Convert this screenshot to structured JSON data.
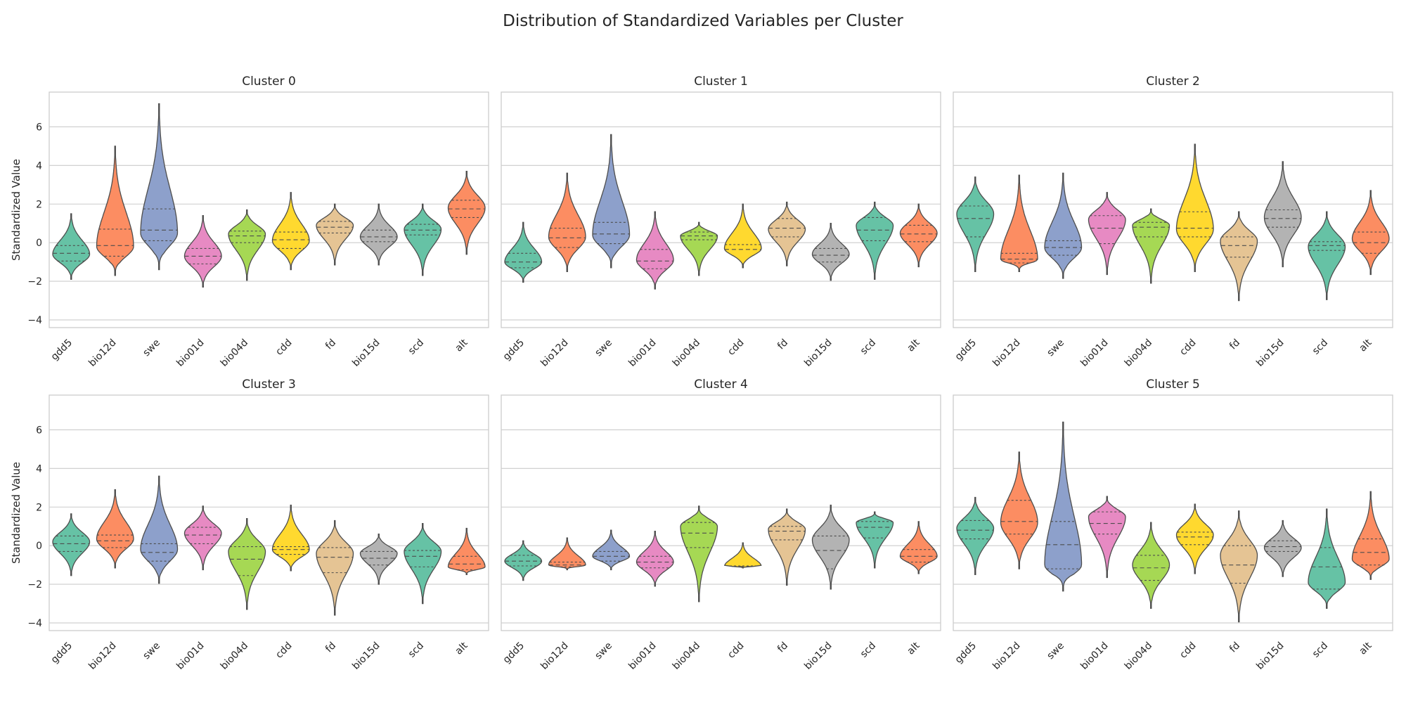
{
  "title": "Distribution of Standardized Variables per Cluster",
  "colors": {
    "gdd5": "#66c2a5",
    "bio12d": "#fc8d62",
    "swe": "#8da0cb",
    "bio01d": "#e78ac3",
    "bio04d": "#a6d854",
    "cdd": "#ffd92f",
    "fd": "#e5c494",
    "bio15d": "#b3b3b3",
    "scd": "#66c2a5",
    "alt": "#fc8d62"
  },
  "chart_data": [
    {
      "type": "violin",
      "title": "Cluster 0",
      "ylabel": "Standardized Value",
      "categories": [
        "gdd5",
        "bio12d",
        "swe",
        "bio01d",
        "bio04d",
        "cdd",
        "fd",
        "bio15d",
        "scd",
        "alt"
      ],
      "ylim": [
        -4.4,
        7.8
      ],
      "yticks": [
        -4,
        -2,
        0,
        2,
        4,
        6
      ],
      "grid": "horizontal",
      "violins": [
        {
          "min": -1.9,
          "q1": -0.95,
          "median": -0.55,
          "q3": -0.15,
          "max": 1.5,
          "peak": -0.6,
          "width": 0.85
        },
        {
          "min": -1.7,
          "q1": -0.7,
          "median": -0.15,
          "q3": 0.7,
          "max": 5.0,
          "peak": -0.2,
          "width": 0.85
        },
        {
          "min": -1.4,
          "q1": 0.1,
          "median": 0.65,
          "q3": 1.75,
          "max": 7.2,
          "peak": 0.5,
          "width": 0.85
        },
        {
          "min": -2.3,
          "q1": -1.1,
          "median": -0.7,
          "q3": -0.3,
          "max": 1.4,
          "peak": -0.7,
          "width": 0.85
        },
        {
          "min": -1.95,
          "q1": 0.0,
          "median": 0.35,
          "q3": 0.6,
          "max": 1.7,
          "peak": 0.45,
          "width": 0.85
        },
        {
          "min": -1.4,
          "q1": -0.3,
          "median": 0.15,
          "q3": 0.55,
          "max": 2.6,
          "peak": 0.1,
          "width": 0.85
        },
        {
          "min": -1.15,
          "q1": 0.5,
          "median": 0.8,
          "q3": 1.1,
          "max": 2.0,
          "peak": 0.9,
          "width": 0.85
        },
        {
          "min": -1.15,
          "q1": 0.05,
          "median": 0.3,
          "q3": 0.65,
          "max": 2.0,
          "peak": 0.3,
          "width": 0.85
        },
        {
          "min": -1.7,
          "q1": 0.4,
          "median": 0.65,
          "q3": 0.95,
          "max": 2.0,
          "peak": 0.7,
          "width": 0.85
        },
        {
          "min": -0.6,
          "q1": 1.3,
          "median": 1.75,
          "q3": 2.2,
          "max": 3.7,
          "peak": 1.8,
          "width": 0.85
        }
      ]
    },
    {
      "type": "violin",
      "title": "Cluster 1",
      "ylabel": "",
      "categories": [
        "gdd5",
        "bio12d",
        "swe",
        "bio01d",
        "bio04d",
        "cdd",
        "fd",
        "bio15d",
        "scd",
        "alt"
      ],
      "ylim": [
        -4.4,
        7.8
      ],
      "yticks": [
        -4,
        -2,
        0,
        2,
        4,
        6
      ],
      "grid": "horizontal",
      "violins": [
        {
          "min": -2.05,
          "q1": -1.3,
          "median": -1.0,
          "q3": -0.55,
          "max": 1.05,
          "peak": -1.0,
          "width": 0.85
        },
        {
          "min": -1.5,
          "q1": -0.25,
          "median": 0.25,
          "q3": 0.75,
          "max": 3.6,
          "peak": 0.3,
          "width": 0.85
        },
        {
          "min": -1.3,
          "q1": -0.05,
          "median": 0.45,
          "q3": 1.05,
          "max": 5.6,
          "peak": 0.4,
          "width": 0.85
        },
        {
          "min": -2.4,
          "q1": -1.35,
          "median": -0.95,
          "q3": -0.35,
          "max": 1.6,
          "peak": -0.9,
          "width": 0.85
        },
        {
          "min": -1.7,
          "q1": 0.15,
          "median": 0.35,
          "q3": 0.55,
          "max": 1.05,
          "peak": 0.35,
          "width": 0.85
        },
        {
          "min": -1.3,
          "q1": -1.1,
          "median": -0.35,
          "q3": -0.1,
          "max": 2.0,
          "peak": -0.3,
          "width": 0.85
        },
        {
          "min": -1.2,
          "q1": 0.3,
          "median": 0.75,
          "q3": 1.25,
          "max": 2.1,
          "peak": 0.7,
          "width": 0.85
        },
        {
          "min": -1.95,
          "q1": -1.0,
          "median": -0.65,
          "q3": -0.3,
          "max": 1.0,
          "peak": -0.6,
          "width": 0.85
        },
        {
          "min": -1.9,
          "q1": 0.1,
          "median": 0.65,
          "q3": 1.3,
          "max": 2.1,
          "peak": 0.9,
          "width": 0.85
        },
        {
          "min": -1.25,
          "q1": 0.05,
          "median": 0.45,
          "q3": 0.9,
          "max": 2.0,
          "peak": 0.5,
          "width": 0.85
        }
      ]
    },
    {
      "type": "violin",
      "title": "Cluster 2",
      "ylabel": "",
      "categories": [
        "gdd5",
        "bio12d",
        "swe",
        "bio01d",
        "bio04d",
        "cdd",
        "fd",
        "bio15d",
        "scd",
        "alt"
      ],
      "ylim": [
        -4.4,
        7.8
      ],
      "yticks": [
        -4,
        -2,
        0,
        2,
        4,
        6
      ],
      "grid": "horizontal",
      "violins": [
        {
          "min": -1.5,
          "q1": 0.3,
          "median": 1.25,
          "q3": 1.9,
          "max": 3.4,
          "peak": 1.5,
          "width": 0.85
        },
        {
          "min": -1.5,
          "q1": -1.05,
          "median": -0.85,
          "q3": -0.55,
          "max": 3.5,
          "peak": -0.85,
          "width": 0.85
        },
        {
          "min": -1.85,
          "q1": -0.65,
          "median": -0.25,
          "q3": 0.1,
          "max": 3.6,
          "peak": -0.25,
          "width": 0.85
        },
        {
          "min": -1.65,
          "q1": -0.05,
          "median": 0.75,
          "q3": 1.4,
          "max": 2.6,
          "peak": 1.2,
          "width": 0.85
        },
        {
          "min": -2.1,
          "q1": 0.3,
          "median": 0.8,
          "q3": 1.05,
          "max": 1.75,
          "peak": 0.9,
          "width": 0.85
        },
        {
          "min": -1.5,
          "q1": 0.3,
          "median": 0.75,
          "q3": 1.6,
          "max": 5.1,
          "peak": 0.7,
          "width": 0.85
        },
        {
          "min": -3.0,
          "q1": -0.75,
          "median": -0.15,
          "q3": 0.3,
          "max": 1.6,
          "peak": 0.1,
          "width": 0.85
        },
        {
          "min": -1.25,
          "q1": 0.8,
          "median": 1.25,
          "q3": 1.7,
          "max": 4.2,
          "peak": 1.3,
          "width": 0.85
        },
        {
          "min": -2.95,
          "q1": -0.4,
          "median": -0.15,
          "q3": 0.05,
          "max": 1.6,
          "peak": -0.2,
          "width": 0.85
        },
        {
          "min": -1.65,
          "q1": -0.55,
          "median": 0.0,
          "q3": 0.55,
          "max": 2.7,
          "peak": 0.2,
          "width": 0.85
        }
      ]
    },
    {
      "type": "violin",
      "title": "Cluster 3",
      "ylabel": "Standardized Value",
      "categories": [
        "gdd5",
        "bio12d",
        "swe",
        "bio01d",
        "bio04d",
        "cdd",
        "fd",
        "bio15d",
        "scd",
        "alt"
      ],
      "ylim": [
        -4.4,
        7.8
      ],
      "yticks": [
        -4,
        -2,
        0,
        2,
        4,
        6
      ],
      "grid": "horizontal",
      "violins": [
        {
          "min": -1.55,
          "q1": -0.3,
          "median": 0.1,
          "q3": 0.5,
          "max": 1.65,
          "peak": 0.2,
          "width": 0.85
        },
        {
          "min": -1.15,
          "q1": -0.1,
          "median": 0.25,
          "q3": 0.55,
          "max": 2.9,
          "peak": 0.35,
          "width": 0.85
        },
        {
          "min": -1.95,
          "q1": -0.8,
          "median": -0.35,
          "q3": 0.1,
          "max": 3.6,
          "peak": -0.2,
          "width": 0.85
        },
        {
          "min": -1.25,
          "q1": 0.1,
          "median": 0.55,
          "q3": 0.95,
          "max": 2.05,
          "peak": 0.65,
          "width": 0.85
        },
        {
          "min": -3.3,
          "q1": -1.55,
          "median": -0.7,
          "q3": -0.05,
          "max": 1.4,
          "peak": -0.3,
          "width": 0.85
        },
        {
          "min": -1.3,
          "q1": -0.45,
          "median": -0.2,
          "q3": -0.05,
          "max": 2.1,
          "peak": -0.2,
          "width": 0.85
        },
        {
          "min": -3.6,
          "q1": -1.4,
          "median": -0.6,
          "q3": -0.1,
          "max": 1.3,
          "peak": -0.4,
          "width": 0.85
        },
        {
          "min": -2.0,
          "q1": -1.0,
          "median": -0.65,
          "q3": -0.3,
          "max": 0.6,
          "peak": -0.4,
          "width": 0.85
        },
        {
          "min": -3.0,
          "q1": -1.1,
          "median": -0.55,
          "q3": -0.25,
          "max": 1.15,
          "peak": -0.3,
          "width": 0.85
        },
        {
          "min": -1.5,
          "q1": -1.25,
          "median": -0.95,
          "q3": -0.55,
          "max": 0.9,
          "peak": -1.1,
          "width": 0.85
        }
      ]
    },
    {
      "type": "violin",
      "title": "Cluster 4",
      "ylabel": "",
      "categories": [
        "gdd5",
        "bio12d",
        "swe",
        "bio01d",
        "bio04d",
        "cdd",
        "fd",
        "bio15d",
        "scd",
        "alt"
      ],
      "ylim": [
        -4.4,
        7.8
      ],
      "yticks": [
        -4,
        -2,
        0,
        2,
        4,
        6
      ],
      "grid": "horizontal",
      "violins": [
        {
          "min": -1.8,
          "q1": -1.05,
          "median": -0.8,
          "q3": -0.5,
          "max": 0.25,
          "peak": -0.8,
          "width": 0.85
        },
        {
          "min": -1.25,
          "q1": -1.1,
          "median": -1.0,
          "q3": -0.85,
          "max": 0.4,
          "peak": -1.0,
          "width": 0.85
        },
        {
          "min": -1.25,
          "q1": -0.8,
          "median": -0.55,
          "q3": -0.3,
          "max": 0.8,
          "peak": -0.55,
          "width": 0.85
        },
        {
          "min": -2.1,
          "q1": -1.15,
          "median": -0.85,
          "q3": -0.55,
          "max": 0.75,
          "peak": -0.85,
          "width": 0.85
        },
        {
          "min": -2.9,
          "q1": -0.1,
          "median": 0.65,
          "q3": 1.2,
          "max": 2.05,
          "peak": 1.0,
          "width": 0.85
        },
        {
          "min": -1.15,
          "q1": -1.1,
          "median": -1.08,
          "q3": -1.05,
          "max": 0.15,
          "peak": -1.08,
          "width": 0.85
        },
        {
          "min": -2.05,
          "q1": 0.3,
          "median": 0.75,
          "q3": 1.0,
          "max": 1.9,
          "peak": 0.85,
          "width": 0.85
        },
        {
          "min": -2.25,
          "q1": -1.2,
          "median": -0.25,
          "q3": 0.5,
          "max": 2.1,
          "peak": 0.3,
          "width": 0.85
        },
        {
          "min": -1.15,
          "q1": 0.4,
          "median": 0.95,
          "q3": 1.25,
          "max": 1.75,
          "peak": 1.2,
          "width": 0.85
        },
        {
          "min": -1.45,
          "q1": -0.85,
          "median": -0.55,
          "q3": -0.2,
          "max": 1.25,
          "peak": -0.55,
          "width": 0.85
        }
      ]
    },
    {
      "type": "violin",
      "title": "Cluster 5",
      "ylabel": "",
      "categories": [
        "gdd5",
        "bio12d",
        "swe",
        "bio01d",
        "bio04d",
        "cdd",
        "fd",
        "bio15d",
        "scd",
        "alt"
      ],
      "ylim": [
        -4.4,
        7.8
      ],
      "yticks": [
        -4,
        -2,
        0,
        2,
        4,
        6
      ],
      "grid": "horizontal",
      "violins": [
        {
          "min": -1.5,
          "q1": 0.35,
          "median": 0.8,
          "q3": 1.3,
          "max": 2.5,
          "peak": 0.9,
          "width": 0.85
        },
        {
          "min": -1.2,
          "q1": 0.6,
          "median": 1.25,
          "q3": 2.35,
          "max": 4.85,
          "peak": 1.2,
          "width": 0.85
        },
        {
          "min": -2.35,
          "q1": -1.2,
          "median": 0.05,
          "q3": 1.25,
          "max": 6.4,
          "peak": -1.0,
          "width": 0.85
        },
        {
          "min": -1.65,
          "q1": 0.6,
          "median": 1.15,
          "q3": 1.75,
          "max": 2.55,
          "peak": 1.5,
          "width": 0.85
        },
        {
          "min": -3.25,
          "q1": -1.8,
          "median": -1.15,
          "q3": -0.5,
          "max": 1.2,
          "peak": -1.0,
          "width": 0.85
        },
        {
          "min": -1.45,
          "q1": 0.05,
          "median": 0.45,
          "q3": 0.7,
          "max": 2.15,
          "peak": 0.55,
          "width": 0.85
        },
        {
          "min": -3.95,
          "q1": -1.95,
          "median": -1.0,
          "q3": 0.0,
          "max": 1.8,
          "peak": -0.5,
          "width": 0.85
        },
        {
          "min": -1.6,
          "q1": -0.3,
          "median": -0.05,
          "q3": 0.25,
          "max": 1.3,
          "peak": -0.1,
          "width": 0.85
        },
        {
          "min": -3.25,
          "q1": -2.25,
          "median": -1.1,
          "q3": -0.1,
          "max": 1.9,
          "peak": -1.9,
          "width": 0.85
        },
        {
          "min": -1.75,
          "q1": -1.0,
          "median": -0.35,
          "q3": 0.35,
          "max": 2.8,
          "peak": -0.7,
          "width": 0.85
        }
      ]
    }
  ]
}
